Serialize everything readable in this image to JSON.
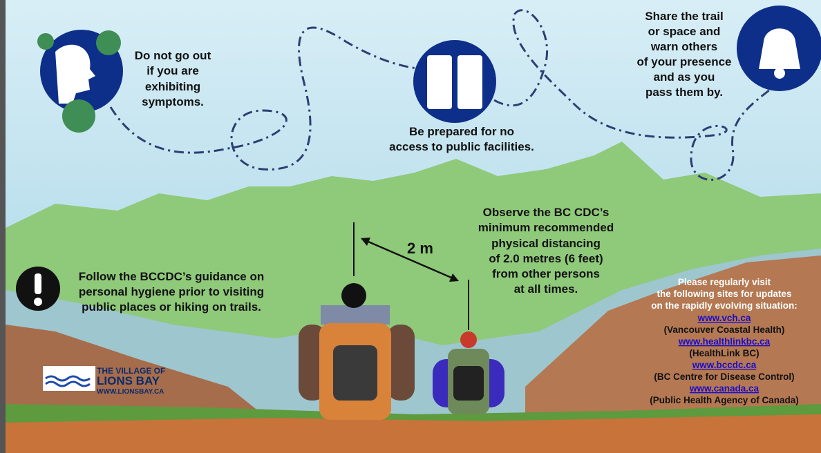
{
  "symptoms": {
    "lines": [
      "Do not go out",
      "if you are",
      "exhibiting",
      "symptoms."
    ]
  },
  "facilities": {
    "lines": [
      "Be prepared for no",
      "access to public facilities."
    ]
  },
  "share": {
    "lines": [
      "Share the trail",
      "or space and",
      "warn others",
      "of your presence",
      "and as you",
      "pass them by."
    ]
  },
  "distance": {
    "label": "2 m",
    "lines": [
      "Observe the BC CDC’s",
      "minimum recommended",
      "physical distancing",
      "of 2.0 metres (6 feet)",
      "from other persons",
      "at all times."
    ]
  },
  "hygiene": {
    "lines": [
      "Follow the BCCDC’s guidance on",
      "personal hygiene prior to visiting",
      "public places or hiking on trails."
    ]
  },
  "resources": {
    "intro": [
      "Please regularly visit",
      "the following sites for updates",
      "on the rapidly evolving situation:"
    ],
    "links": [
      {
        "url": "www.vch.ca",
        "name": "(Vancouver Coastal Health)"
      },
      {
        "url": "www.healthlinkbc.ca",
        "name": "(HealthLink BC)"
      },
      {
        "url": "www.bccdc.ca",
        "name": "(BC Centre for Disease Control)"
      },
      {
        "url": "www.canada.ca",
        "name": "(Public Health Agency of Canada)"
      }
    ]
  },
  "logo": {
    "lines": [
      "THE VILLAGE OF",
      "LIONS BAY"
    ],
    "url": "WWW.LIONSBAY.CA"
  }
}
